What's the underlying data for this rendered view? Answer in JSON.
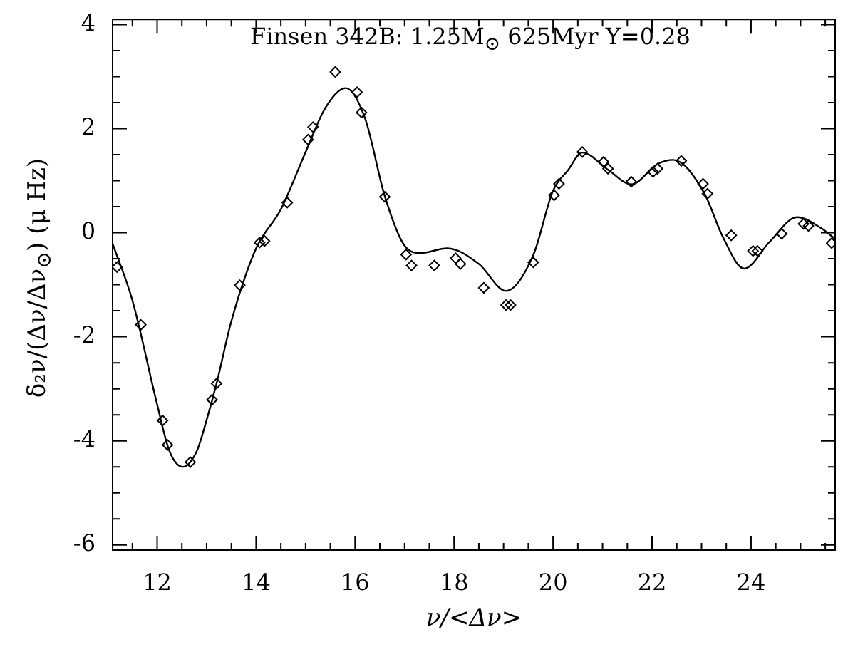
{
  "chart_data": {
    "type": "scatter",
    "title": "Finsen 342B: 1.25M$_{⊙}$ 625Myr Y=0.28",
    "xlabel": "ν/<Δν>",
    "ylabel": "δ₂ν/(Δν/Δν$_{⊙}$) (μ Hz)",
    "xlim": [
      11.1,
      25.7
    ],
    "ylim": [
      -6.1,
      4.1
    ],
    "xticks": [
      {
        "value": 11.5,
        "label": null
      },
      12,
      {
        "value": 12.5,
        "label": null
      },
      {
        "value": 13,
        "label": null
      },
      {
        "value": 13.5,
        "label": null
      },
      14,
      {
        "value": 14.5,
        "label": null
      },
      {
        "value": 15,
        "label": null
      },
      {
        "value": 15.5,
        "label": null
      },
      16,
      {
        "value": 16.5,
        "label": null
      },
      {
        "value": 17,
        "label": null
      },
      {
        "value": 17.5,
        "label": null
      },
      18,
      {
        "value": 18.5,
        "label": null
      },
      {
        "value": 19,
        "label": null
      },
      {
        "value": 19.5,
        "label": null
      },
      20,
      {
        "value": 20.5,
        "label": null
      },
      {
        "value": 21,
        "label": null
      },
      {
        "value": 21.5,
        "label": null
      },
      22,
      {
        "value": 22.5,
        "label": null
      },
      {
        "value": 23,
        "label": null
      },
      {
        "value": 23.5,
        "label": null
      },
      24,
      {
        "value": 24.5,
        "label": null
      },
      {
        "value": 25,
        "label": null
      },
      {
        "value": 25.5,
        "label": null
      }
    ],
    "yticks": [
      -6,
      {
        "value": -5.5,
        "label": null
      },
      {
        "value": -5,
        "label": null
      },
      {
        "value": -4.5,
        "label": null
      },
      -4,
      {
        "value": -3.5,
        "label": null
      },
      {
        "value": -3,
        "label": null
      },
      {
        "value": -2.5,
        "label": null
      },
      -2,
      {
        "value": -1.5,
        "label": null
      },
      {
        "value": -1,
        "label": null
      },
      {
        "value": -0.5,
        "label": null
      },
      0,
      {
        "value": 0.5,
        "label": null
      },
      {
        "value": 1,
        "label": null
      },
      {
        "value": 1.5,
        "label": null
      },
      2,
      {
        "value": 2.5,
        "label": null
      },
      {
        "value": 3,
        "label": null
      },
      {
        "value": 3.5,
        "label": null
      },
      4
    ],
    "series": [
      {
        "color": "#000000",
        "marker": "diamond",
        "x": [
          11.19,
          11.67,
          12.11,
          12.21,
          12.67,
          13.11,
          13.2,
          13.67,
          14.07,
          14.17,
          14.63,
          15.05,
          15.15,
          15.6,
          16.04,
          16.13,
          16.6,
          17.03,
          17.14,
          17.6,
          18.03,
          18.13,
          18.6,
          19.05,
          19.14,
          19.6,
          20.02,
          20.12,
          20.59,
          21.02,
          21.11,
          21.58,
          22.02,
          22.11,
          22.59,
          23.03,
          23.12,
          23.6,
          24.04,
          24.13,
          24.62,
          25.06,
          25.16,
          25.63
        ],
        "values": [
          -0.66,
          -1.77,
          -3.61,
          -4.08,
          -4.41,
          -3.21,
          -2.9,
          -1.01,
          -0.19,
          -0.16,
          0.58,
          1.79,
          2.03,
          3.09,
          2.7,
          2.31,
          0.69,
          -0.42,
          -0.63,
          -0.63,
          -0.49,
          -0.6,
          -1.06,
          -1.39,
          -1.39,
          -0.57,
          0.72,
          0.94,
          1.55,
          1.36,
          1.23,
          0.98,
          1.17,
          1.23,
          1.38,
          0.94,
          0.75,
          -0.05,
          -0.35,
          -0.35,
          -0.02,
          0.17,
          0.13,
          -0.2
        ]
      },
      {
        "type": "line",
        "color": "#000000",
        "marker": "none",
        "x": [
          11.1,
          11.5,
          12.0,
          12.25,
          12.52,
          12.8,
          13.0,
          13.2,
          13.5,
          14.0,
          14.5,
          15.0,
          15.4,
          15.81,
          16.2,
          16.6,
          17.0,
          17.33,
          17.86,
          18.5,
          19.05,
          19.6,
          20.0,
          20.3,
          20.59,
          21.11,
          21.58,
          22.11,
          22.43,
          23.05,
          23.43,
          23.86,
          24.38,
          24.93,
          25.43,
          25.7
        ],
        "values": [
          -0.21,
          -1.3,
          -3.3,
          -4.2,
          -4.5,
          -4.2,
          -3.6,
          -2.9,
          -1.7,
          -0.3,
          0.45,
          1.55,
          2.4,
          2.78,
          2.2,
          0.7,
          -0.25,
          -0.39,
          -0.3,
          -0.6,
          -1.12,
          -0.43,
          0.81,
          1.2,
          1.54,
          1.21,
          0.93,
          1.32,
          1.4,
          0.77,
          -0.08,
          -0.69,
          -0.17,
          0.3,
          0.08,
          -0.12
        ]
      }
    ]
  }
}
